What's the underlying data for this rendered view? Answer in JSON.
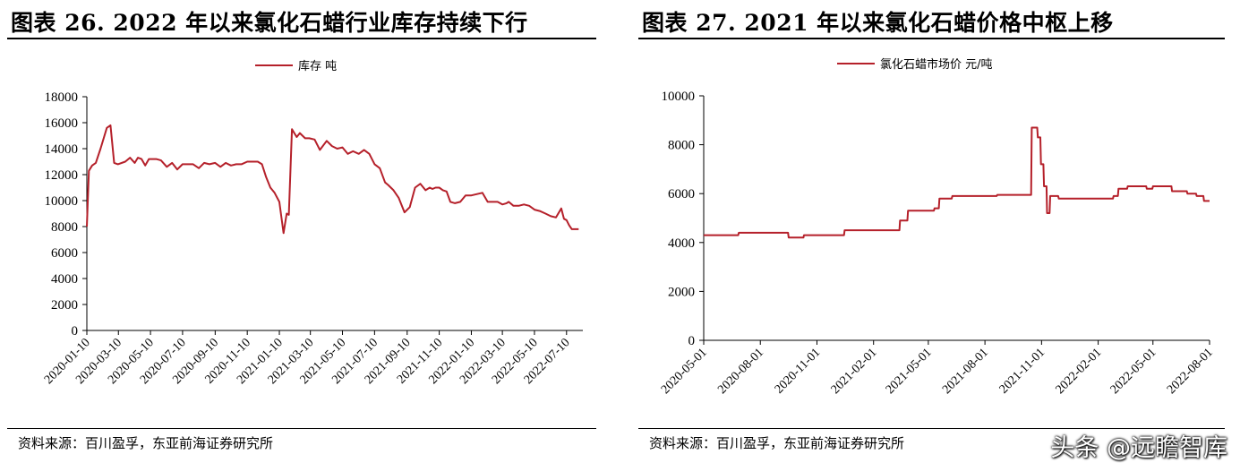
{
  "figures": [
    {
      "title": "图表 26. 2022 年以来氯化石蜡行业库存持续下行",
      "source": "资料来源：百川盈孚，东亚前海证券研究所"
    },
    {
      "title": "图表 27. 2021 年以来氯化石蜡价格中枢上移",
      "source": "资料来源：百川盈孚，东亚前海证券研究所"
    }
  ],
  "watermark": "头条 @远瞻智库",
  "colors": {
    "series": "#b5202a",
    "axis": "#000000",
    "text": "#000000"
  },
  "chart_data": [
    {
      "type": "line",
      "title": "",
      "xlabel": "",
      "ylabel": "",
      "ylim": [
        0,
        18000
      ],
      "yticks": [
        0,
        2000,
        4000,
        6000,
        8000,
        10000,
        12000,
        14000,
        16000,
        18000
      ],
      "xlim": [
        "2020-01-10",
        "2022-08-10"
      ],
      "xticks": [
        "2020-01-10",
        "2020-03-10",
        "2020-05-10",
        "2020-07-10",
        "2020-09-10",
        "2020-11-10",
        "2021-01-10",
        "2021-03-10",
        "2021-05-10",
        "2021-07-10",
        "2021-09-10",
        "2021-11-10",
        "2022-01-10",
        "2022-03-10",
        "2022-05-10",
        "2022-07-10"
      ],
      "grid": false,
      "legend_position": "top-center",
      "series": [
        {
          "name": "库存 吨",
          "x": [
            "2020-01-10",
            "2020-01-14",
            "2020-01-20",
            "2020-01-27",
            "2020-02-05",
            "2020-02-17",
            "2020-02-24",
            "2020-03-02",
            "2020-03-09",
            "2020-03-23",
            "2020-04-01",
            "2020-04-10",
            "2020-04-16",
            "2020-04-23",
            "2020-04-30",
            "2020-05-07",
            "2020-05-14",
            "2020-05-21",
            "2020-05-30",
            "2020-06-10",
            "2020-06-20",
            "2020-06-30",
            "2020-07-10",
            "2020-07-20",
            "2020-07-30",
            "2020-08-10",
            "2020-08-20",
            "2020-08-30",
            "2020-09-10",
            "2020-09-20",
            "2020-09-30",
            "2020-10-10",
            "2020-10-20",
            "2020-10-30",
            "2020-11-10",
            "2020-11-20",
            "2020-11-30",
            "2020-12-08",
            "2020-12-16",
            "2020-12-24",
            "2021-01-01",
            "2021-01-10",
            "2021-01-18",
            "2021-01-24",
            "2021-01-28",
            "2021-02-03",
            "2021-02-12",
            "2021-02-18",
            "2021-02-28",
            "2021-03-08",
            "2021-03-18",
            "2021-03-28",
            "2021-04-10",
            "2021-04-20",
            "2021-04-30",
            "2021-05-10",
            "2021-05-20",
            "2021-05-30",
            "2021-06-10",
            "2021-06-20",
            "2021-06-30",
            "2021-07-10",
            "2021-07-20",
            "2021-07-30",
            "2021-08-05",
            "2021-08-15",
            "2021-08-25",
            "2021-09-05",
            "2021-09-15",
            "2021-09-25",
            "2021-10-05",
            "2021-10-15",
            "2021-10-23",
            "2021-10-28",
            "2021-11-03",
            "2021-11-10",
            "2021-11-17",
            "2021-11-24",
            "2021-12-01",
            "2021-12-10",
            "2021-12-20",
            "2021-12-30",
            "2022-01-10",
            "2022-01-20",
            "2022-01-31",
            "2022-02-10",
            "2022-02-20",
            "2022-03-01",
            "2022-03-10",
            "2022-03-18",
            "2022-03-22",
            "2022-03-31",
            "2022-04-10",
            "2022-04-20",
            "2022-04-30",
            "2022-05-10",
            "2022-05-20",
            "2022-05-31",
            "2022-06-10",
            "2022-06-20",
            "2022-06-30",
            "2022-07-05",
            "2022-07-10",
            "2022-07-15",
            "2022-07-20",
            "2022-07-28",
            "2022-08-02"
          ],
          "values": [
            8000,
            12300,
            12700,
            12900,
            14000,
            15600,
            15800,
            12900,
            12800,
            13000,
            13300,
            12900,
            13300,
            13200,
            12700,
            13200,
            13200,
            13200,
            13100,
            12600,
            12900,
            12400,
            12800,
            12800,
            12800,
            12500,
            12900,
            12800,
            12900,
            12600,
            12900,
            12700,
            12800,
            12800,
            13000,
            13000,
            13000,
            12800,
            11800,
            11000,
            10600,
            9900,
            7500,
            9000,
            8900,
            15500,
            14900,
            15200,
            14800,
            14800,
            14700,
            13900,
            14600,
            14200,
            14000,
            14100,
            13600,
            13800,
            13600,
            13900,
            13600,
            12800,
            12500,
            11400,
            11200,
            10800,
            10200,
            9100,
            9500,
            11000,
            11300,
            10800,
            11000,
            10900,
            11000,
            11000,
            10800,
            10700,
            9900,
            9800,
            9900,
            10400,
            10400,
            10500,
            10600,
            9900,
            9900,
            9900,
            9700,
            9800,
            9900,
            9600,
            9600,
            9700,
            9600,
            9300,
            9200,
            9000,
            8800,
            8700,
            9400,
            8600,
            8500,
            8100,
            7800,
            7800,
            7800
          ]
        }
      ]
    },
    {
      "type": "line",
      "title": "",
      "xlabel": "",
      "ylabel": "",
      "ylim": [
        0,
        10000
      ],
      "yticks": [
        0,
        2000,
        4000,
        6000,
        8000,
        10000
      ],
      "xlim": [
        "2020-05-01",
        "2022-08-01"
      ],
      "xticks": [
        "2020-05-01",
        "2020-08-01",
        "2020-11-01",
        "2021-02-01",
        "2021-05-01",
        "2021-08-01",
        "2021-11-01",
        "2022-02-01",
        "2022-05-01",
        "2022-08-01"
      ],
      "grid": false,
      "legend_position": "top-center",
      "series": [
        {
          "name": "氯化石蜡市场价 元/吨",
          "x": [
            "2020-05-01",
            "2020-06-26",
            "2020-06-27",
            "2020-09-15",
            "2020-09-16",
            "2020-10-10",
            "2020-10-11",
            "2020-12-15",
            "2020-12-16",
            "2021-03-15",
            "2021-03-16",
            "2021-03-28",
            "2021-03-29",
            "2021-05-10",
            "2021-05-11",
            "2021-05-18",
            "2021-05-19",
            "2021-06-08",
            "2021-06-09",
            "2021-08-20",
            "2021-08-21",
            "2021-10-15",
            "2021-10-16",
            "2021-10-25",
            "2021-10-26",
            "2021-10-30",
            "2021-10-31",
            "2021-11-04",
            "2021-11-05",
            "2021-11-09",
            "2021-11-10",
            "2021-11-14",
            "2021-11-15",
            "2021-11-28",
            "2021-11-29",
            "2022-02-25",
            "2022-02-26",
            "2022-03-05",
            "2022-03-06",
            "2022-03-20",
            "2022-03-21",
            "2022-04-20",
            "2022-04-21",
            "2022-04-30",
            "2022-05-01",
            "2022-05-31",
            "2022-06-01",
            "2022-06-25",
            "2022-06-26",
            "2022-07-10",
            "2022-07-11",
            "2022-07-22",
            "2022-07-23",
            "2022-08-01"
          ],
          "values": [
            4300,
            4300,
            4400,
            4400,
            4200,
            4200,
            4300,
            4300,
            4500,
            4500,
            4900,
            4900,
            5300,
            5300,
            5400,
            5400,
            5800,
            5800,
            5900,
            5900,
            5950,
            5950,
            8700,
            8700,
            8300,
            8300,
            7200,
            7200,
            6300,
            6300,
            5200,
            5200,
            5900,
            5900,
            5800,
            5800,
            5900,
            5900,
            6200,
            6200,
            6300,
            6300,
            6200,
            6200,
            6300,
            6300,
            6100,
            6100,
            6000,
            6000,
            5900,
            5900,
            5700,
            5700
          ]
        }
      ]
    }
  ]
}
